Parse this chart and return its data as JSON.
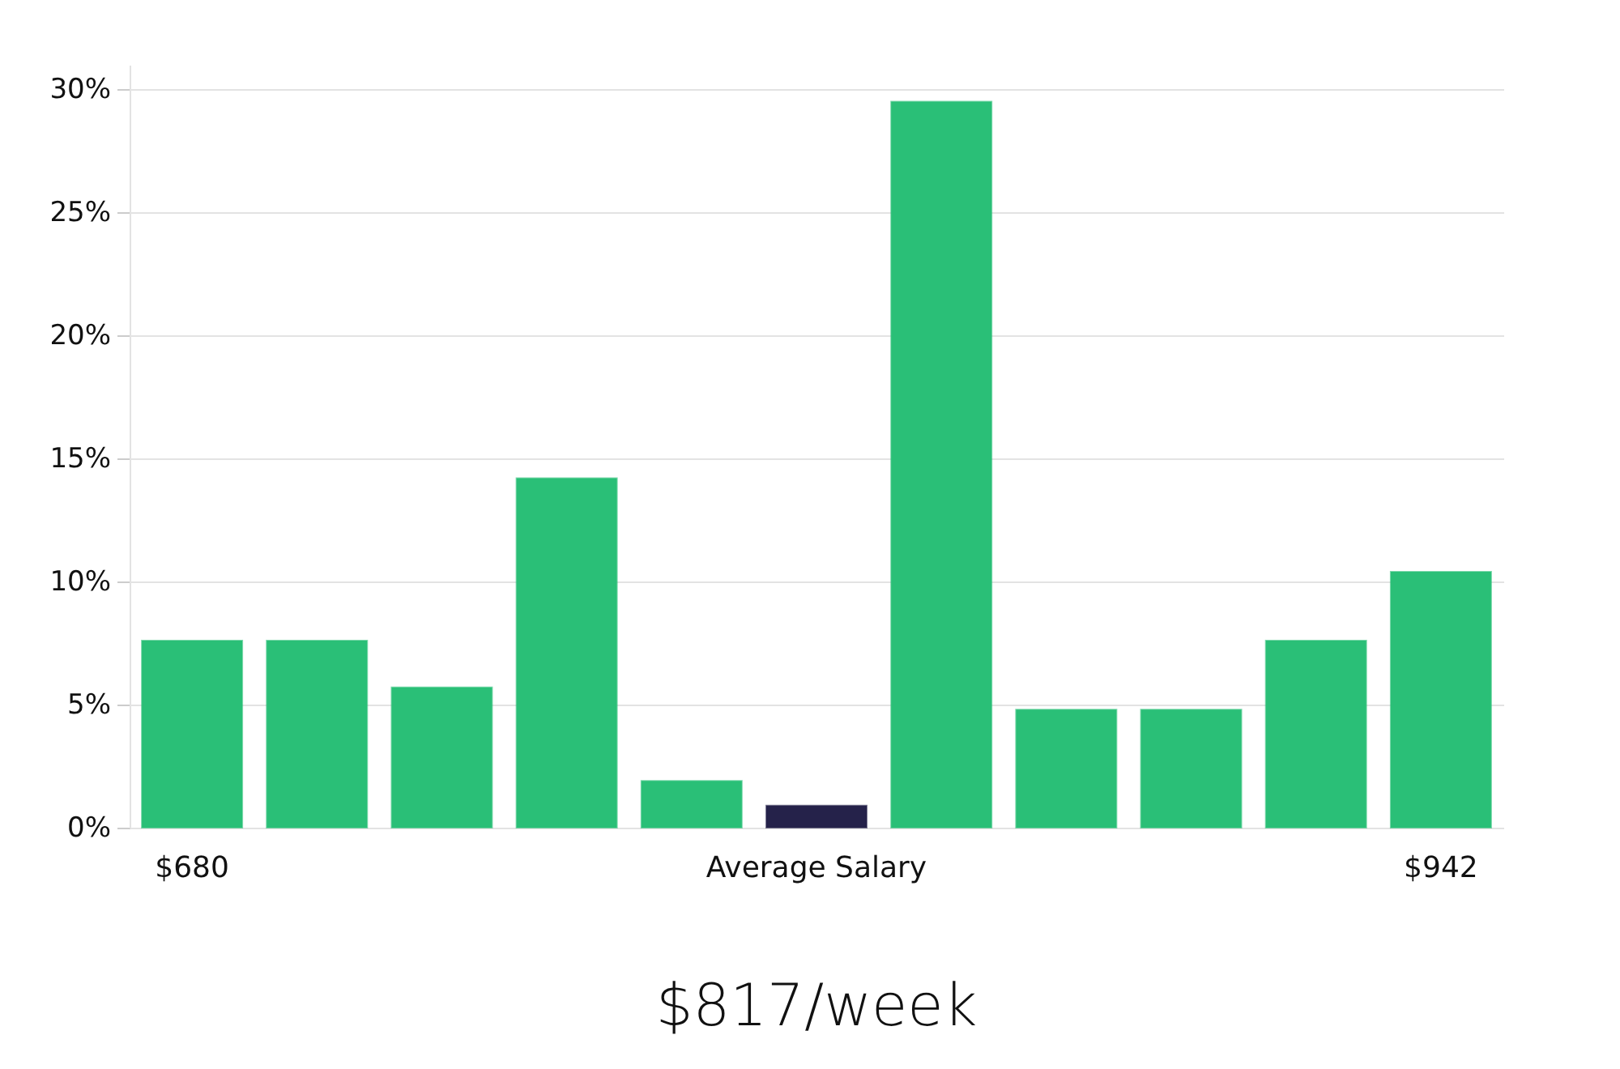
{
  "chart_data": {
    "type": "bar",
    "title": "$817/week",
    "categories": [
      "$680",
      null,
      null,
      null,
      null,
      "Average Salary",
      null,
      null,
      null,
      null,
      "$942"
    ],
    "values": [
      7.6,
      7.6,
      5.7,
      14.2,
      1.9,
      0.9,
      29.5,
      4.8,
      4.8,
      7.6,
      10.4
    ],
    "colors": [
      "#2abf77",
      "#2abf77",
      "#2abf77",
      "#2abf77",
      "#2abf77",
      "#25224a",
      "#2abf77",
      "#2abf77",
      "#2abf77",
      "#2abf77",
      "#2abf77"
    ],
    "ylim": [
      0,
      31
    ],
    "yticks": [
      {
        "value": 0,
        "label": "0%"
      },
      {
        "value": 5,
        "label": "5%"
      },
      {
        "value": 10,
        "label": "10%"
      },
      {
        "value": 15,
        "label": "15%"
      },
      {
        "value": 20,
        "label": "20%"
      },
      {
        "value": 25,
        "label": "25%"
      },
      {
        "value": 30,
        "label": "30%"
      }
    ],
    "grid": "y"
  }
}
